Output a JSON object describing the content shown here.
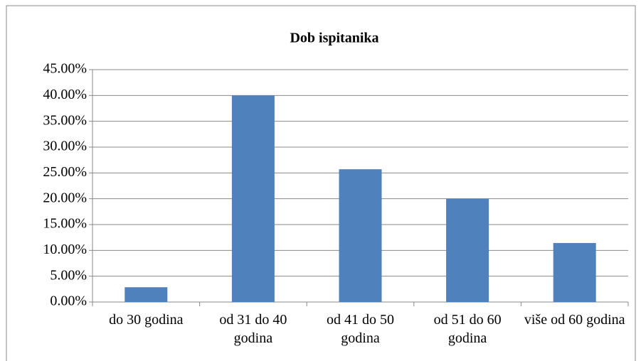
{
  "chart_data": {
    "type": "bar",
    "title": "Dob ispitanika",
    "categories": [
      "do 30 godina",
      "od 31 do 40 godina",
      "od 41 do 50 godina",
      "od 51 do 60 godina",
      "više od 60 godina"
    ],
    "values": [
      2.86,
      40,
      25.71,
      20,
      11.43
    ],
    "color": "#4f81bd",
    "ylim": [
      0,
      45
    ],
    "yticks": [
      {
        "value": 0,
        "label": "0.00%"
      },
      {
        "value": 5,
        "label": "5.00%"
      },
      {
        "value": 10,
        "label": "10.00%"
      },
      {
        "value": 15,
        "label": "15.00%"
      },
      {
        "value": 20,
        "label": "20.00%"
      },
      {
        "value": 25,
        "label": "25.00%"
      },
      {
        "value": 30,
        "label": "30.00%"
      },
      {
        "value": 35,
        "label": "35.00%"
      },
      {
        "value": 40,
        "label": "40.00%"
      },
      {
        "value": 45,
        "label": "45.00%"
      }
    ],
    "grid": true
  }
}
